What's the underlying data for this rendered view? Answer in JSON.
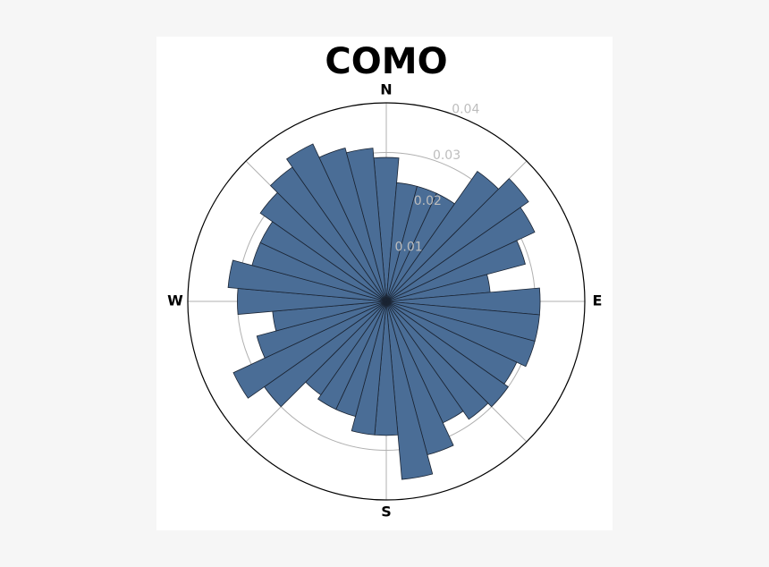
{
  "chart_data": {
    "type": "polar_bar",
    "title": "COMO",
    "x": [
      0,
      10,
      20,
      30,
      40,
      50,
      60,
      70,
      80,
      90,
      100,
      110,
      120,
      130,
      140,
      150,
      160,
      170,
      180,
      190,
      200,
      210,
      220,
      230,
      240,
      250,
      260,
      270,
      280,
      290,
      300,
      310,
      320,
      330,
      340,
      350
    ],
    "values": [
      0.029,
      0.024,
      0.024,
      0.024,
      0.032,
      0.035,
      0.033,
      0.029,
      0.021,
      0.031,
      0.031,
      0.031,
      0.029,
      0.03,
      0.029,
      0.027,
      0.032,
      0.036,
      0.027,
      0.027,
      0.024,
      0.024,
      0.023,
      0.03,
      0.034,
      0.027,
      0.023,
      0.03,
      0.032,
      0.028,
      0.028,
      0.031,
      0.033,
      0.035,
      0.032,
      0.031
    ],
    "color": "#4a6d96",
    "ylim": [
      0,
      0.04
    ],
    "yticks": [
      0.01,
      0.02,
      0.03,
      0.04
    ],
    "xticks": [
      {
        "value": 0,
        "label": "N"
      },
      {
        "value": 90,
        "label": "E"
      },
      {
        "value": 180,
        "label": "S"
      },
      {
        "value": 270,
        "label": "W"
      }
    ],
    "grid": true
  }
}
